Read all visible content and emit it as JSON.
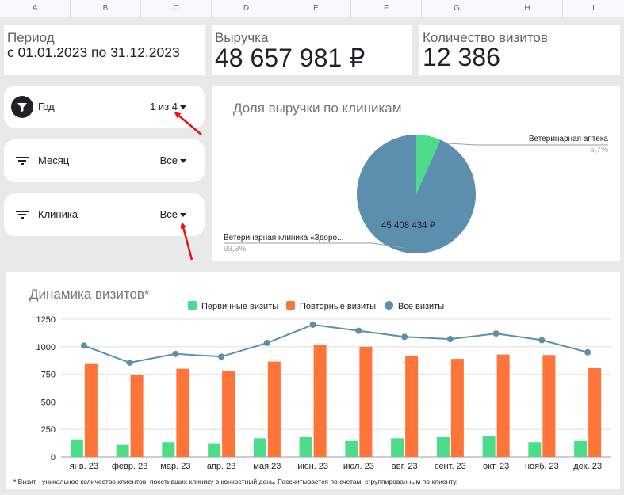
{
  "sheet": {
    "columns": [
      "A",
      "B",
      "C",
      "D",
      "E",
      "F",
      "G",
      "H",
      "I"
    ]
  },
  "kpis": {
    "period_label": "Период",
    "period_value": "с 01.01.2023 по 31.12.2023",
    "revenue_label": "Выручка",
    "revenue_value": "48 657 981 ₽",
    "visits_label": "Количество визитов",
    "visits_value": "12 386"
  },
  "filters": [
    {
      "label": "Год",
      "value": "1 из 4",
      "icon": "filter-funnel-icon",
      "active": true
    },
    {
      "label": "Месяц",
      "value": "Все",
      "icon": "filter-lines-icon",
      "active": false
    },
    {
      "label": "Клиника",
      "value": "Все",
      "icon": "filter-lines-icon",
      "active": false
    }
  ],
  "colors": {
    "primary_visits": "#4cdc8a",
    "repeat_visits": "#ff7438",
    "all_visits": "#5b8fad",
    "pie_main": "#5b8fad",
    "pie_second": "#4cdc8a",
    "annotation_arrow": "#e8120c"
  },
  "pie": {
    "title": "Доля выручки по клиникам",
    "slices": [
      {
        "label": "Ветеринарная аптека",
        "percent_label": "6,7%",
        "share": 0.067
      },
      {
        "label": "Ветеринарная клиника «Здоро...",
        "percent_label": "93,3%",
        "share": 0.933,
        "value_label": "45 408 434 ₽"
      }
    ]
  },
  "chart_data": {
    "type": "bar",
    "title": "Динамика визитов*",
    "categories": [
      "янв. 23",
      "февр. 23",
      "мар. 23",
      "апр. 23",
      "мая 23",
      "июн. 23",
      "июл. 23",
      "авг. 23",
      "сент. 23",
      "окт. 23",
      "нояб. 23",
      "дек. 23"
    ],
    "series": [
      {
        "name": "Первичные визиты",
        "kind": "bar",
        "values": [
          160,
          110,
          135,
          125,
          170,
          180,
          145,
          170,
          180,
          190,
          135,
          145
        ]
      },
      {
        "name": "Повторные визиты",
        "kind": "bar",
        "values": [
          850,
          740,
          800,
          780,
          865,
          1020,
          1000,
          920,
          890,
          930,
          925,
          805
        ]
      },
      {
        "name": "Все визиты",
        "kind": "line",
        "values": [
          1010,
          855,
          935,
          910,
          1035,
          1200,
          1145,
          1090,
          1070,
          1120,
          1060,
          950
        ]
      }
    ],
    "yticks": [
      "0",
      "250",
      "500",
      "750",
      "1000",
      "1250"
    ],
    "ylim": [
      0,
      1250
    ],
    "grid": true,
    "legend": "top",
    "footnote": "* Визит - уникальное количество клиентов, посетивших клинику в конкретный день. Рассчитывается по счетам, сгруппированным по клиенту."
  }
}
